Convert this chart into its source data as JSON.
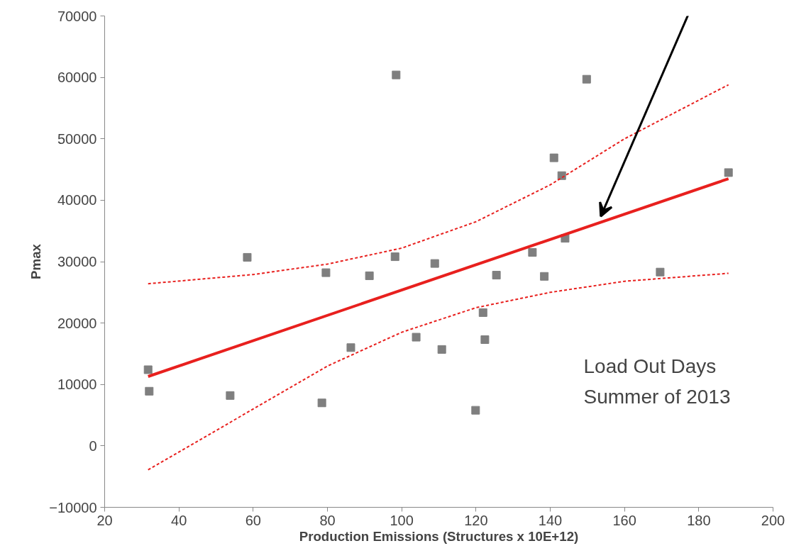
{
  "chart_data": {
    "type": "scatter",
    "xlabel": "Production Emissions (Structures x 10E+12)",
    "ylabel": "Pmax",
    "xlim": [
      20,
      200
    ],
    "xticks": [
      20,
      40,
      60,
      80,
      100,
      120,
      140,
      160,
      180,
      200
    ],
    "ylim": [
      -10000,
      70000
    ],
    "yticks": [
      -10000,
      0,
      10000,
      20000,
      30000,
      40000,
      50000,
      60000,
      70000
    ],
    "grid": false,
    "annotations": [
      "Load Out Days\nSummer of 2013"
    ],
    "series": [
      {
        "color": "#7f7f7f",
        "marker": "square",
        "x": [
          31.7,
          32.0,
          53.8,
          58.4,
          78.5,
          79.6,
          86.3,
          91.3,
          98.5,
          98.2,
          103.9,
          108.9,
          110.8,
          119.9,
          121.9,
          122.4,
          125.5,
          135.2,
          138.4,
          141.0,
          143.1,
          144.0,
          149.8,
          169.6,
          188.0
        ],
        "values": [
          12400,
          8900,
          8200,
          30700,
          7000,
          28200,
          16000,
          27700,
          60400,
          30800,
          17700,
          29700,
          15700,
          5800,
          21700,
          17300,
          27800,
          31500,
          27600,
          46900,
          44000,
          33800,
          59700,
          28300,
          44500
        ]
      },
      {
        "type": "line",
        "color": "#e8201e",
        "line_style": "solid",
        "x": [
          31.7,
          188.0
        ],
        "values": [
          11300,
          43500
        ]
      },
      {
        "type": "line",
        "color": "#e8201e",
        "line_style": "dashed",
        "x": [
          31.7,
          60,
          80,
          100,
          120,
          140,
          160,
          188.0
        ],
        "values": [
          26400,
          27900,
          29600,
          32200,
          36500,
          42500,
          50000,
          58800
        ]
      },
      {
        "type": "line",
        "color": "#e8201e",
        "line_style": "dashed",
        "x": [
          31.7,
          60,
          80,
          100,
          120,
          140,
          160,
          188.0
        ],
        "values": [
          -3900,
          6000,
          13000,
          18500,
          22500,
          25000,
          26800,
          28100
        ]
      }
    ]
  }
}
